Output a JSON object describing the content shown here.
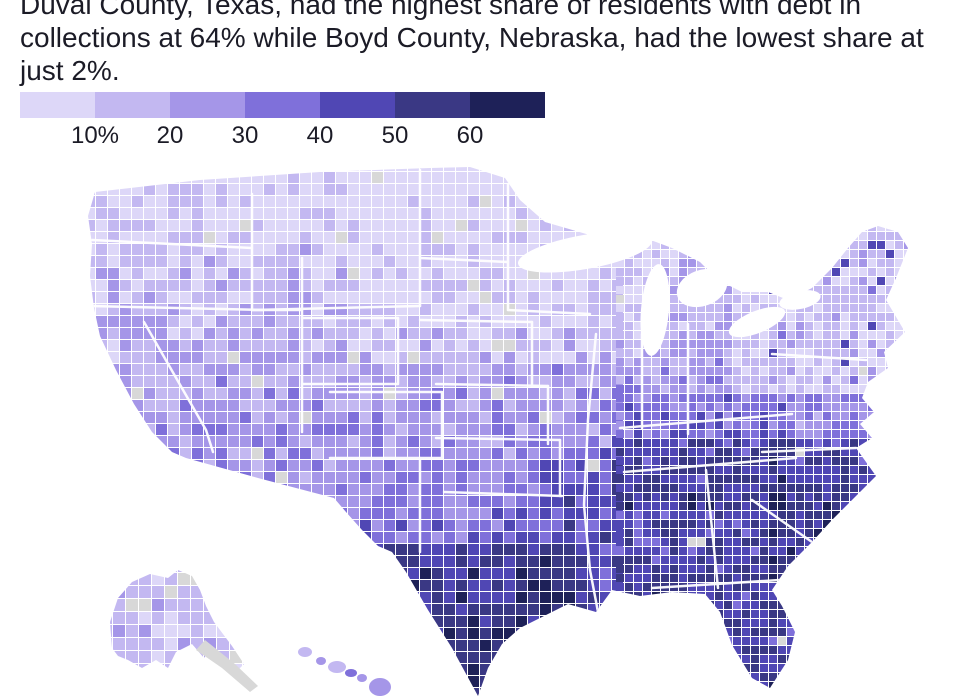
{
  "title": "Duval County, Texas, had the highest share of residents with debt in collections at 64% while Boyd County, Nebraska, had the lowest share at just 2%.",
  "legend": {
    "tick_labels": [
      "10%",
      "20",
      "30",
      "40",
      "50",
      "60"
    ],
    "colors": [
      "#ddd7f8",
      "#c3b8f1",
      "#a596e8",
      "#7f70da",
      "#5047b4",
      "#3a3884",
      "#1e2158"
    ],
    "no_data_color": "#d8d8d8"
  },
  "chart_data": {
    "type": "heatmap",
    "subtype": "choropleth-us-counties",
    "title": "Duval County, Texas, had the highest share of residents with debt in collections at 64% while Boyd County, Nebraska, had the lowest share at just 2%.",
    "metric": "Share of residents with debt in collections",
    "unit": "%",
    "bins": [
      10,
      20,
      30,
      40,
      50,
      60
    ],
    "bin_colors": [
      "#ddd7f8",
      "#c3b8f1",
      "#a596e8",
      "#7f70da",
      "#5047b4",
      "#3a3884",
      "#1e2158"
    ],
    "no_data_color": "#d8d8d8",
    "value_range": [
      2,
      64
    ],
    "legend_position": "top-left",
    "extremes": [
      {
        "label": "Duval County, Texas",
        "value": 64,
        "kind": "highest"
      },
      {
        "label": "Boyd County, Nebraska",
        "value": 2,
        "kind": "lowest"
      }
    ],
    "regional_pattern": "Higher (darker) shares across the South, especially south Texas and the Southeast; lower (lighter) shares in the Upper Midwest, Northern Plains and New England; scattered gray counties indicate no data"
  }
}
